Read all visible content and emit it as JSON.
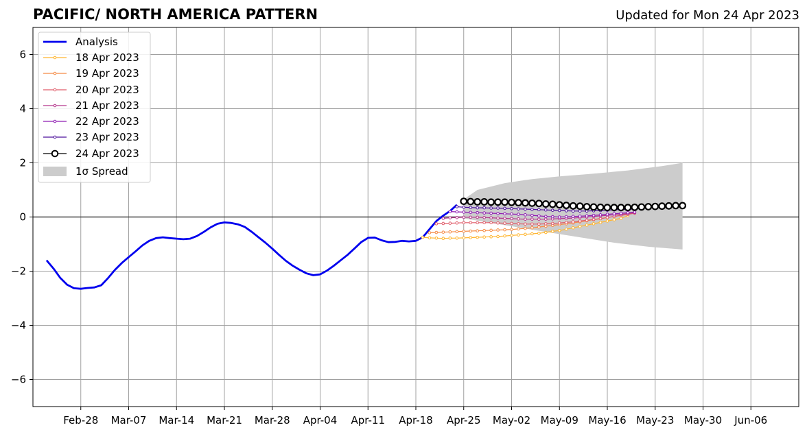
{
  "header": {
    "title": "PACIFIC/ NORTH AMERICA PATTERN",
    "updated": "Updated for Mon 24 Apr 2023"
  },
  "chart_data": {
    "type": "line",
    "title": "PACIFIC/ NORTH AMERICA PATTERN",
    "xlabel": "",
    "ylabel": "",
    "x_start": "2023-02-21",
    "xlim": [
      "2023-02-21",
      "2023-06-13"
    ],
    "ylim": [
      -7,
      7
    ],
    "grid": true,
    "legend_position": "top-left",
    "x_tick_labels": [
      "Feb-28",
      "Mar-07",
      "Mar-14",
      "Mar-21",
      "Mar-28",
      "Apr-04",
      "Apr-11",
      "Apr-18",
      "Apr-25",
      "May-02",
      "May-09",
      "May-16",
      "May-23",
      "May-30",
      "Jun-06"
    ],
    "y_ticks": [
      -6,
      -4,
      -2,
      0,
      2,
      4,
      6
    ],
    "y_tick_labels": [
      "−6",
      "−4",
      "−2",
      "0",
      "2",
      "4",
      "6"
    ],
    "legend": [
      "Analysis",
      "18 Apr 2023",
      "19 Apr 2023",
      "20 Apr 2023",
      "21 Apr 2023",
      "22 Apr 2023",
      "23 Apr 2023",
      "24 Apr 2023",
      "1σ Spread"
    ],
    "analysis": {
      "name": "Analysis",
      "color": "#0000ee",
      "points": [
        [
          "2023-02-23",
          -1.6
        ],
        [
          "2023-02-24",
          -1.9
        ],
        [
          "2023-02-25",
          -2.25
        ],
        [
          "2023-02-26",
          -2.5
        ],
        [
          "2023-02-27",
          -2.63
        ],
        [
          "2023-02-28",
          -2.65
        ],
        [
          "2023-03-01",
          -2.62
        ],
        [
          "2023-03-02",
          -2.6
        ],
        [
          "2023-03-03",
          -2.52
        ],
        [
          "2023-03-04",
          -2.25
        ],
        [
          "2023-03-05",
          -1.95
        ],
        [
          "2023-03-06",
          -1.7
        ],
        [
          "2023-03-07",
          -1.48
        ],
        [
          "2023-03-08",
          -1.27
        ],
        [
          "2023-03-09",
          -1.05
        ],
        [
          "2023-03-10",
          -0.88
        ],
        [
          "2023-03-11",
          -0.78
        ],
        [
          "2023-03-12",
          -0.75
        ],
        [
          "2023-03-13",
          -0.78
        ],
        [
          "2023-03-14",
          -0.8
        ],
        [
          "2023-03-15",
          -0.82
        ],
        [
          "2023-03-16",
          -0.8
        ],
        [
          "2023-03-17",
          -0.7
        ],
        [
          "2023-03-18",
          -0.55
        ],
        [
          "2023-03-19",
          -0.38
        ],
        [
          "2023-03-20",
          -0.25
        ],
        [
          "2023-03-21",
          -0.2
        ],
        [
          "2023-03-22",
          -0.22
        ],
        [
          "2023-03-23",
          -0.27
        ],
        [
          "2023-03-24",
          -0.37
        ],
        [
          "2023-03-25",
          -0.55
        ],
        [
          "2023-03-26",
          -0.75
        ],
        [
          "2023-03-27",
          -0.95
        ],
        [
          "2023-03-28",
          -1.17
        ],
        [
          "2023-03-29",
          -1.4
        ],
        [
          "2023-03-30",
          -1.62
        ],
        [
          "2023-03-31",
          -1.8
        ],
        [
          "2023-04-01",
          -1.95
        ],
        [
          "2023-04-02",
          -2.08
        ],
        [
          "2023-04-03",
          -2.15
        ],
        [
          "2023-04-04",
          -2.12
        ],
        [
          "2023-04-05",
          -1.98
        ],
        [
          "2023-04-06",
          -1.8
        ],
        [
          "2023-04-07",
          -1.6
        ],
        [
          "2023-04-08",
          -1.4
        ],
        [
          "2023-04-09",
          -1.17
        ],
        [
          "2023-04-10",
          -0.93
        ],
        [
          "2023-04-11",
          -0.77
        ],
        [
          "2023-04-12",
          -0.76
        ],
        [
          "2023-04-13",
          -0.86
        ],
        [
          "2023-04-14",
          -0.93
        ],
        [
          "2023-04-15",
          -0.92
        ],
        [
          "2023-04-16",
          -0.88
        ],
        [
          "2023-04-17",
          -0.9
        ],
        [
          "2023-04-18",
          -0.88
        ],
        [
          "2023-04-19",
          -0.75
        ],
        [
          "2023-04-20",
          -0.45
        ],
        [
          "2023-04-21",
          -0.15
        ],
        [
          "2023-04-22",
          0.05
        ],
        [
          "2023-04-23",
          0.22
        ],
        [
          "2023-04-24",
          0.45
        ]
      ]
    },
    "forecast_series": [
      {
        "name": "18 Apr 2023",
        "color": "#ffb52e",
        "start": "2023-04-19",
        "values": [
          -0.75,
          -0.77,
          -0.78,
          -0.79,
          -0.78,
          -0.78,
          -0.77,
          -0.76,
          -0.75,
          -0.74,
          -0.73,
          -0.72,
          -0.7,
          -0.68,
          -0.66,
          -0.64,
          -0.62,
          -0.6,
          -0.57,
          -0.53,
          -0.5,
          -0.45,
          -0.4,
          -0.35,
          -0.3,
          -0.25,
          -0.2,
          -0.15,
          -0.1,
          -0.05,
          0.05
        ]
      },
      {
        "name": "19 Apr 2023",
        "color": "#f58b45",
        "start": "2023-04-20",
        "values": [
          -0.58,
          -0.57,
          -0.56,
          -0.55,
          -0.54,
          -0.53,
          -0.52,
          -0.51,
          -0.5,
          -0.49,
          -0.48,
          -0.47,
          -0.46,
          -0.44,
          -0.42,
          -0.4,
          -0.37,
          -0.34,
          -0.31,
          -0.28,
          -0.25,
          -0.22,
          -0.18,
          -0.14,
          -0.1,
          -0.06,
          -0.02,
          0.02,
          0.06,
          0.1
        ]
      },
      {
        "name": "20 Apr 2023",
        "color": "#e05c6a",
        "start": "2023-04-21",
        "values": [
          -0.25,
          -0.24,
          -0.23,
          -0.22,
          -0.21,
          -0.21,
          -0.21,
          -0.21,
          -0.21,
          -0.22,
          -0.23,
          -0.24,
          -0.25,
          -0.26,
          -0.26,
          -0.26,
          -0.25,
          -0.24,
          -0.22,
          -0.2,
          -0.18,
          -0.15,
          -0.12,
          -0.09,
          -0.06,
          -0.02,
          0.02,
          0.06,
          0.1,
          0.14
        ]
      },
      {
        "name": "21 Apr 2023",
        "color": "#b5368c",
        "start": "2023-04-22",
        "values": [
          -0.05,
          -0.03,
          -0.02,
          -0.01,
          -0.01,
          -0.01,
          -0.02,
          -0.03,
          -0.04,
          -0.05,
          -0.06,
          -0.07,
          -0.08,
          -0.08,
          -0.08,
          -0.08,
          -0.07,
          -0.06,
          -0.05,
          -0.04,
          -0.02,
          0,
          0.02,
          0.04,
          0.06,
          0.08,
          0.1,
          0.13,
          0.16
        ]
      },
      {
        "name": "22 Apr 2023",
        "color": "#8e1ab2",
        "start": "2023-04-23",
        "values": [
          0.2,
          0.19,
          0.18,
          0.17,
          0.16,
          0.15,
          0.14,
          0.13,
          0.12,
          0.11,
          0.1,
          0.08,
          0.06,
          0.04,
          0.02,
          0.01,
          0,
          0.01,
          0.02,
          0.03,
          0.04,
          0.06,
          0.08,
          0.1,
          0.12,
          0.14,
          0.16,
          0.18
        ]
      },
      {
        "name": "23 Apr 2023",
        "color": "#4b0f9b",
        "start": "2023-04-24",
        "values": [
          0.38,
          0.36,
          0.35,
          0.34,
          0.34,
          0.33,
          0.33,
          0.32,
          0.31,
          0.3,
          0.29,
          0.28,
          0.27,
          0.26,
          0.25,
          0.24,
          0.23,
          0.22,
          0.22,
          0.22,
          0.23,
          0.24,
          0.25,
          0.26,
          0.27,
          0.28,
          0.3
        ]
      },
      {
        "name": "24 Apr 2023",
        "color": "#000000",
        "start": "2023-04-25",
        "values": [
          0.58,
          0.57,
          0.56,
          0.56,
          0.55,
          0.55,
          0.55,
          0.54,
          0.53,
          0.52,
          0.51,
          0.5,
          0.48,
          0.47,
          0.45,
          0.43,
          0.41,
          0.4,
          0.38,
          0.37,
          0.36,
          0.35,
          0.35,
          0.35,
          0.35,
          0.36,
          0.37,
          0.38,
          0.39,
          0.4,
          0.41,
          0.42,
          0.42
        ]
      }
    ],
    "spread": {
      "name": "1σ Spread",
      "color": "#cccccc",
      "upper": [
        [
          "2023-04-25",
          0.65
        ],
        [
          "2023-04-27",
          1.0
        ],
        [
          "2023-05-01",
          1.25
        ],
        [
          "2023-05-05",
          1.4
        ],
        [
          "2023-05-09",
          1.5
        ],
        [
          "2023-05-14",
          1.6
        ],
        [
          "2023-05-19",
          1.72
        ],
        [
          "2023-05-24",
          1.88
        ],
        [
          "2023-05-27",
          2.0
        ]
      ],
      "lower": [
        [
          "2023-04-25",
          -0.05
        ],
        [
          "2023-05-01",
          -0.3
        ],
        [
          "2023-05-07",
          -0.55
        ],
        [
          "2023-05-12",
          -0.75
        ],
        [
          "2023-05-17",
          -0.95
        ],
        [
          "2023-05-22",
          -1.1
        ],
        [
          "2023-05-27",
          -1.2
        ]
      ]
    }
  }
}
